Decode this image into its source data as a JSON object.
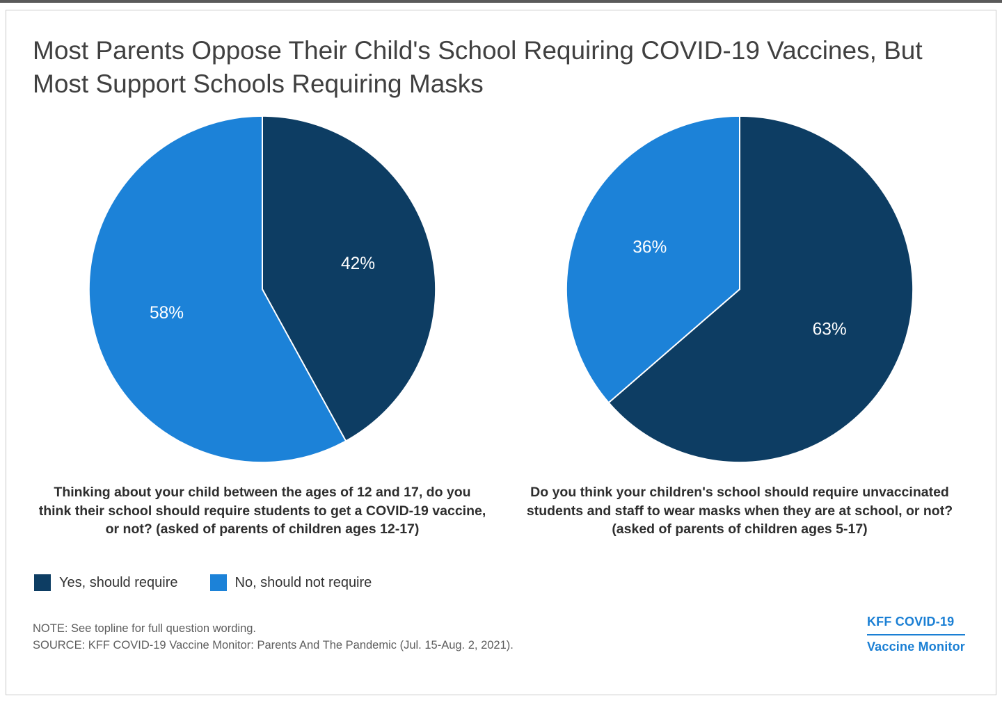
{
  "title": "Most Parents Oppose Their Child's School Requiring COVID-19 Vaccines, But Most Support Schools Requiring Masks",
  "colors": {
    "yes_dark_navy": "#0d3d63",
    "no_light_blue": "#1c82d8",
    "logo_blue": "#1a7fd4"
  },
  "chart_data": [
    {
      "type": "pie",
      "question": "Thinking about your child between the ages of 12 and 17, do you think their school should require students to get a COVID-19 vaccine, or not? (asked of parents of children ages 12-17)",
      "start_angle_deg": 0,
      "direction": "clockwise",
      "slices": [
        {
          "label": "Yes, should require",
          "value": 42,
          "display": "42%",
          "color": "#0d3d63"
        },
        {
          "label": "No, should not require",
          "value": 58,
          "display": "58%",
          "color": "#1c82d8"
        }
      ]
    },
    {
      "type": "pie",
      "question": "Do you think your children's school should require unvaccinated students and staff to wear masks when they are at school, or not? (asked of parents of children ages 5-17)",
      "start_angle_deg": 0,
      "direction": "clockwise",
      "slices": [
        {
          "label": "Yes, should require",
          "value": 63,
          "display": "63%",
          "color": "#0d3d63"
        },
        {
          "label": "No, should not require",
          "value": 36,
          "display": "36%",
          "color": "#1c82d8"
        }
      ]
    }
  ],
  "legend": [
    {
      "label": "Yes, should require",
      "color": "#0d3d63"
    },
    {
      "label": "No, should not require",
      "color": "#1c82d8"
    }
  ],
  "note": "NOTE: See topline for full question wording.",
  "source": "SOURCE: KFF COVID-19 Vaccine Monitor: Parents And The Pandemic (Jul. 15-Aug. 2, 2021).",
  "logo": {
    "line1": "KFF COVID-19",
    "line2": "Vaccine Monitor"
  }
}
